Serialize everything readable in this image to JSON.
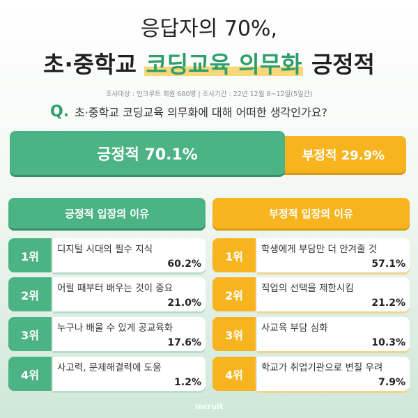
{
  "title": {
    "line1": "응답자의 70%,",
    "line2_pre": "초·중학교 ",
    "line2_highlight": "코딩교육 의무화",
    "line2_post": " 긍정적"
  },
  "survey_info": "조사대상 : 인크루트 회원 680명  |  조사기간 : 22년 12월 8~12일(5일간)",
  "question": {
    "mark": "Q.",
    "text": "초·중학교 코딩교육 의무화에 대해 어떠한 생각인가요?"
  },
  "result": {
    "positive_label": "긍정적 70.1%",
    "negative_label": "부정적 29.9%",
    "positive_value": 70.1,
    "negative_value": 29.9
  },
  "colors": {
    "green": "#4cb384",
    "yellow": "#f7b41f",
    "highlight": "#f6d77a"
  },
  "positive_reasons": {
    "header": "긍정적 입장의 이유",
    "items": [
      {
        "rank": "1위",
        "reason": "디지털 시대의 필수 지식",
        "pct": "60.2%"
      },
      {
        "rank": "2위",
        "reason": "어릴 때부터 배우는 것이 중요",
        "pct": "21.0%"
      },
      {
        "rank": "3위",
        "reason": "누구나 배울 수 있게 공교육화",
        "pct": "17.6%"
      },
      {
        "rank": "4위",
        "reason": "사고력, 문제해결력에 도움",
        "pct": "1.2%"
      }
    ]
  },
  "negative_reasons": {
    "header": "부정적 입장의 이유",
    "items": [
      {
        "rank": "1위",
        "reason": "학생에게 부담만 더 안겨줄 것",
        "pct": "57.1%"
      },
      {
        "rank": "2위",
        "reason": "직업의 선택을 제한시킴",
        "pct": "21.2%"
      },
      {
        "rank": "3위",
        "reason": "사교육 부담 심화",
        "pct": "10.3%"
      },
      {
        "rank": "4위",
        "reason": "학교가 취업기관으로 변질 우려",
        "pct": "7.9%"
      }
    ]
  },
  "brand": "incruit"
}
